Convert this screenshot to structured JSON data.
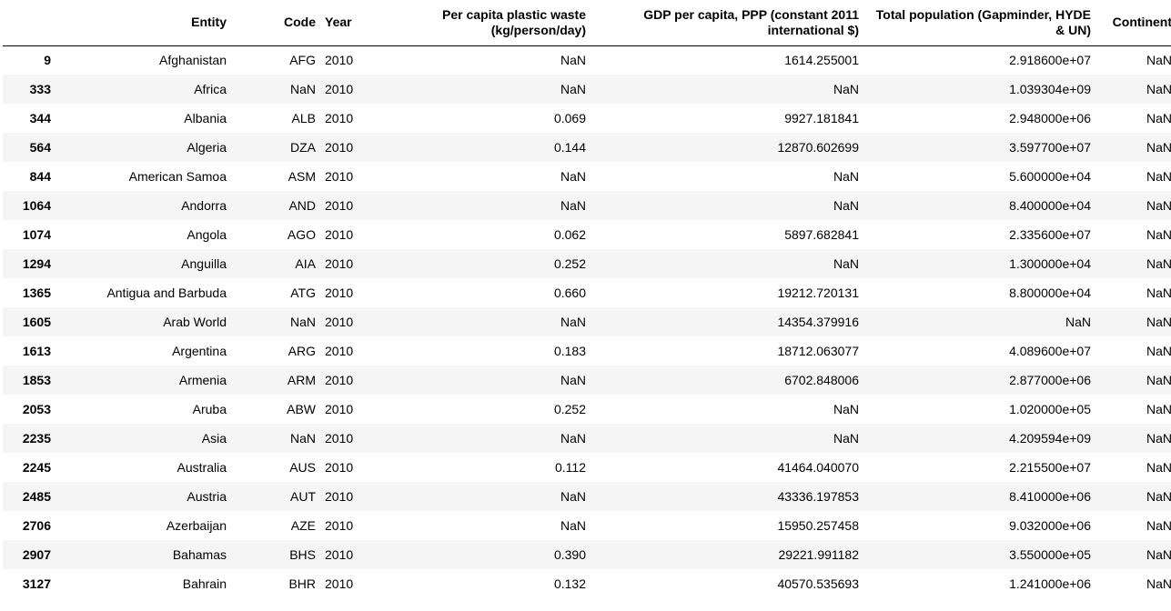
{
  "table": {
    "columns": {
      "entity": "Entity",
      "code": "Code",
      "year": "Year",
      "waste": "Per capita plastic waste (kg/person/day)",
      "gdp": "GDP per capita, PPP (constant 2011 international $)",
      "population": "Total population (Gapminder, HYDE & UN)",
      "continent": "Continent"
    },
    "rows": [
      {
        "index": "9",
        "entity": "Afghanistan",
        "code": "AFG",
        "year": "2010",
        "waste": "NaN",
        "gdp": "1614.255001",
        "population": "2.918600e+07",
        "continent": "NaN"
      },
      {
        "index": "333",
        "entity": "Africa",
        "code": "NaN",
        "year": "2010",
        "waste": "NaN",
        "gdp": "NaN",
        "population": "1.039304e+09",
        "continent": "NaN"
      },
      {
        "index": "344",
        "entity": "Albania",
        "code": "ALB",
        "year": "2010",
        "waste": "0.069",
        "gdp": "9927.181841",
        "population": "2.948000e+06",
        "continent": "NaN"
      },
      {
        "index": "564",
        "entity": "Algeria",
        "code": "DZA",
        "year": "2010",
        "waste": "0.144",
        "gdp": "12870.602699",
        "population": "3.597700e+07",
        "continent": "NaN"
      },
      {
        "index": "844",
        "entity": "American Samoa",
        "code": "ASM",
        "year": "2010",
        "waste": "NaN",
        "gdp": "NaN",
        "population": "5.600000e+04",
        "continent": "NaN"
      },
      {
        "index": "1064",
        "entity": "Andorra",
        "code": "AND",
        "year": "2010",
        "waste": "NaN",
        "gdp": "NaN",
        "population": "8.400000e+04",
        "continent": "NaN"
      },
      {
        "index": "1074",
        "entity": "Angola",
        "code": "AGO",
        "year": "2010",
        "waste": "0.062",
        "gdp": "5897.682841",
        "population": "2.335600e+07",
        "continent": "NaN"
      },
      {
        "index": "1294",
        "entity": "Anguilla",
        "code": "AIA",
        "year": "2010",
        "waste": "0.252",
        "gdp": "NaN",
        "population": "1.300000e+04",
        "continent": "NaN"
      },
      {
        "index": "1365",
        "entity": "Antigua and Barbuda",
        "code": "ATG",
        "year": "2010",
        "waste": "0.660",
        "gdp": "19212.720131",
        "population": "8.800000e+04",
        "continent": "NaN"
      },
      {
        "index": "1605",
        "entity": "Arab World",
        "code": "NaN",
        "year": "2010",
        "waste": "NaN",
        "gdp": "14354.379916",
        "population": "NaN",
        "continent": "NaN"
      },
      {
        "index": "1613",
        "entity": "Argentina",
        "code": "ARG",
        "year": "2010",
        "waste": "0.183",
        "gdp": "18712.063077",
        "population": "4.089600e+07",
        "continent": "NaN"
      },
      {
        "index": "1853",
        "entity": "Armenia",
        "code": "ARM",
        "year": "2010",
        "waste": "NaN",
        "gdp": "6702.848006",
        "population": "2.877000e+06",
        "continent": "NaN"
      },
      {
        "index": "2053",
        "entity": "Aruba",
        "code": "ABW",
        "year": "2010",
        "waste": "0.252",
        "gdp": "NaN",
        "population": "1.020000e+05",
        "continent": "NaN"
      },
      {
        "index": "2235",
        "entity": "Asia",
        "code": "NaN",
        "year": "2010",
        "waste": "NaN",
        "gdp": "NaN",
        "population": "4.209594e+09",
        "continent": "NaN"
      },
      {
        "index": "2245",
        "entity": "Australia",
        "code": "AUS",
        "year": "2010",
        "waste": "0.112",
        "gdp": "41464.040070",
        "population": "2.215500e+07",
        "continent": "NaN"
      },
      {
        "index": "2485",
        "entity": "Austria",
        "code": "AUT",
        "year": "2010",
        "waste": "NaN",
        "gdp": "43336.197853",
        "population": "8.410000e+06",
        "continent": "NaN"
      },
      {
        "index": "2706",
        "entity": "Azerbaijan",
        "code": "AZE",
        "year": "2010",
        "waste": "NaN",
        "gdp": "15950.257458",
        "population": "9.032000e+06",
        "continent": "NaN"
      },
      {
        "index": "2907",
        "entity": "Bahamas",
        "code": "BHS",
        "year": "2010",
        "waste": "0.390",
        "gdp": "29221.991182",
        "population": "3.550000e+05",
        "continent": "NaN"
      },
      {
        "index": "3127",
        "entity": "Bahrain",
        "code": "BHR",
        "year": "2010",
        "waste": "0.132",
        "gdp": "40570.535693",
        "population": "1.241000e+06",
        "continent": "NaN"
      }
    ]
  }
}
